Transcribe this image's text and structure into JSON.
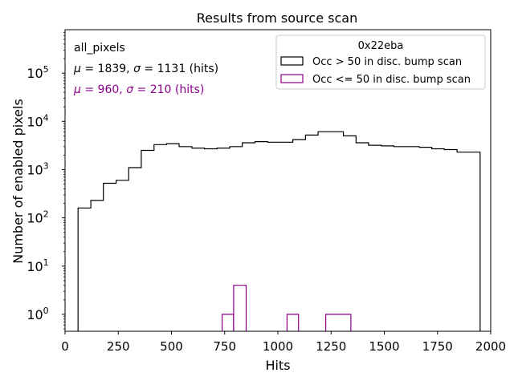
{
  "chart_data": {
    "type": "histogram",
    "title": "Results from source scan",
    "xlabel": "Hits",
    "ylabel": "Number of enabled pixels",
    "xlim": [
      0,
      2000
    ],
    "ylim_log10": [
      -0.35,
      5.9
    ],
    "yscale": "log",
    "x_ticks": [
      0,
      250,
      500,
      750,
      1000,
      1250,
      1500,
      1750,
      2000
    ],
    "x_tick_labels": [
      "0",
      "250",
      "500",
      "750",
      "1000",
      "1250",
      "1500",
      "1750",
      "2000"
    ],
    "y_ticks": [
      {
        "exp": 0,
        "base": "10",
        "sup": "0"
      },
      {
        "exp": 1,
        "base": "10",
        "sup": "1"
      },
      {
        "exp": 2,
        "base": "10",
        "sup": "2"
      },
      {
        "exp": 3,
        "base": "10",
        "sup": "3"
      },
      {
        "exp": 4,
        "base": "10",
        "sup": "4"
      },
      {
        "exp": 5,
        "base": "10",
        "sup": "5"
      }
    ],
    "bin_edges": [
      61,
      121,
      180,
      240,
      299,
      358,
      418,
      477,
      536,
      596,
      655,
      714,
      774,
      833,
      892,
      952,
      1011,
      1070,
      1130,
      1189,
      1248,
      1308,
      1367,
      1426,
      1486,
      1545,
      1604,
      1664,
      1723,
      1782,
      1842,
      1901,
      1950
    ],
    "series": [
      {
        "name": "Occ > 50 in disc. bump scan",
        "color": "#000000",
        "values": [
          160,
          230,
          520,
          600,
          1100,
          2500,
          3300,
          3450,
          3000,
          2800,
          2700,
          2800,
          3000,
          3600,
          3800,
          3700,
          3700,
          4200,
          5200,
          6100,
          6100,
          5000,
          3600,
          3200,
          3100,
          3000,
          3000,
          2900,
          2700,
          2600,
          2300,
          2300
        ]
      },
      {
        "name": "Occ <= 50 in disc. bump scan",
        "color": "#8b008b",
        "bins": [
          {
            "x0": 738,
            "x1": 792,
            "value": 1
          },
          {
            "x0": 792,
            "x1": 851,
            "value": 4
          },
          {
            "x0": 1043,
            "x1": 1097,
            "value": 1
          },
          {
            "x0": 1225,
            "x1": 1343,
            "value": 1
          }
        ]
      }
    ],
    "legend": {
      "title": "0x22eba",
      "placement": "top-right",
      "entries": [
        {
          "label": "Occ > 50 in disc. bump scan",
          "color": "#000000"
        },
        {
          "label": "Occ <= 50 in disc. bump scan",
          "color": "#8b008b"
        }
      ]
    },
    "annotations": {
      "name": "all_pixels",
      "stats1": {
        "mu_symbol": "μ",
        "mu_value": " = 1839, ",
        "sigma_symbol": "σ",
        "sigma_value": " = 1131 (hits)",
        "color": "#000000"
      },
      "stats2": {
        "mu_symbol": "μ",
        "mu_value": " = 960, ",
        "sigma_symbol": "σ",
        "sigma_value": " = 210 (hits)",
        "color": "#8b008b"
      }
    }
  }
}
